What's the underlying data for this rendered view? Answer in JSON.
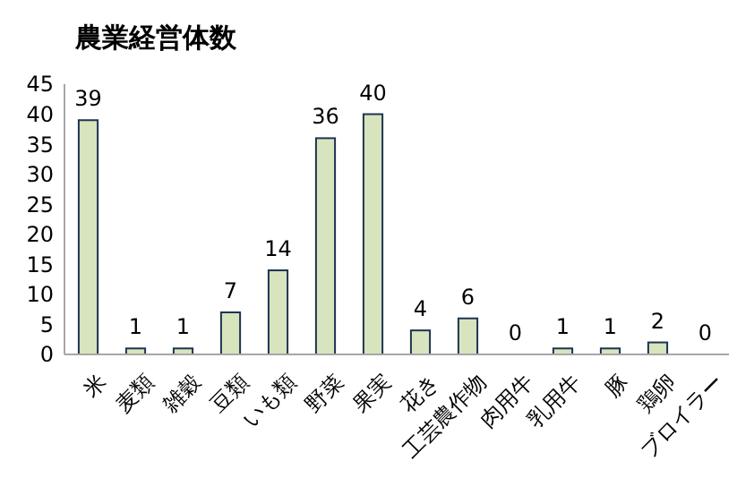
{
  "chart_data": {
    "type": "bar",
    "title": "農業経営体数",
    "categories": [
      "米",
      "麦類",
      "雑穀",
      "豆類",
      "いも類",
      "野菜",
      "果実",
      "花き",
      "工芸農作物",
      "肉用牛",
      "乳用牛",
      "豚",
      "鶏卵",
      "ブロイラー"
    ],
    "values": [
      39,
      1,
      1,
      7,
      14,
      36,
      40,
      4,
      6,
      0,
      1,
      1,
      2,
      0
    ],
    "color": "#d7e4bd",
    "ylim": [
      0,
      45
    ],
    "yticks": [
      0,
      5,
      10,
      15,
      20,
      25,
      30,
      35,
      40,
      45
    ],
    "data_labels": true,
    "grid": false
  }
}
